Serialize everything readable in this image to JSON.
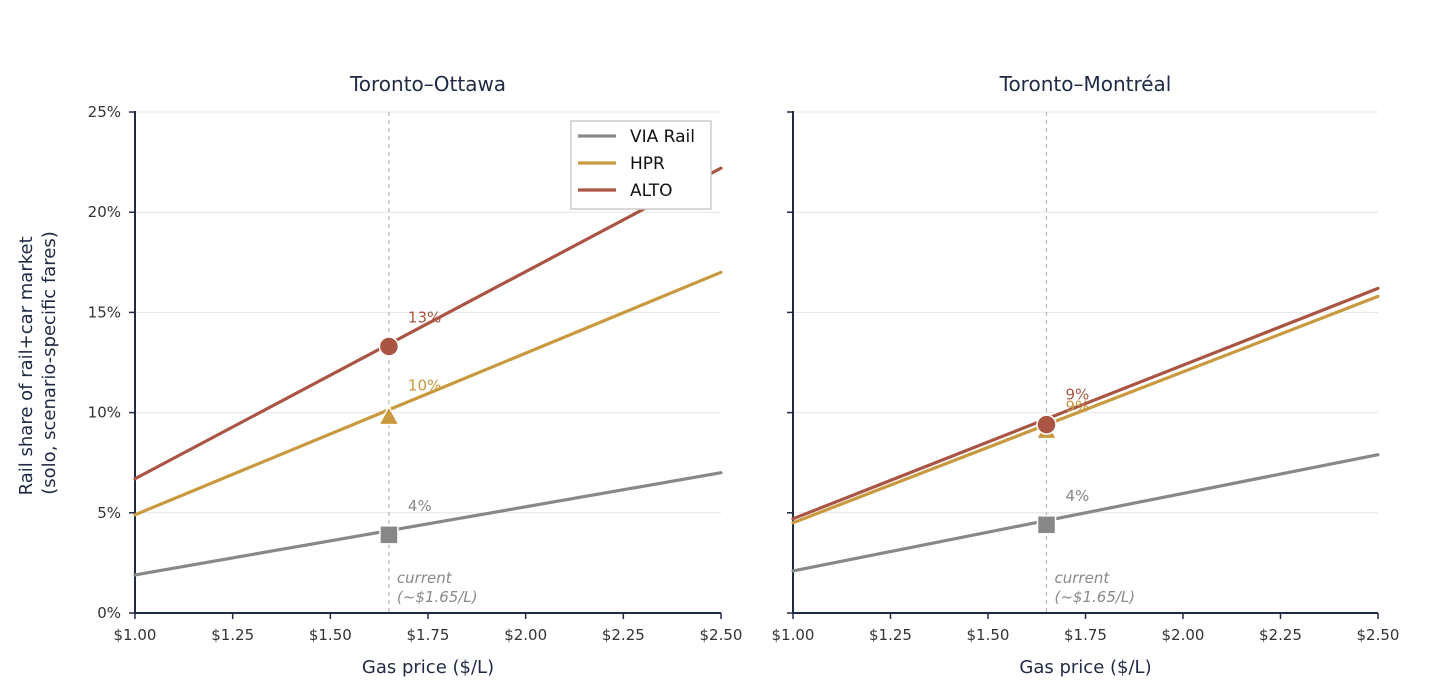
{
  "ylabel_lines": [
    "Rail share of rail+car market",
    "(solo, scenario-specific fares)"
  ],
  "colors": {
    "VIA Rail": "#888888",
    "HPR": "#c9993f",
    "ALTO": "#aa5544"
  },
  "legend": [
    "VIA Rail",
    "HPR",
    "ALTO"
  ],
  "chart_data": [
    {
      "type": "line",
      "title": "Toronto–Ottawa",
      "xlabel": "Gas price ($/L)",
      "ylabel": "Rail share of rail+car market (solo, scenario-specific fares)",
      "xlim": [
        1.0,
        2.5
      ],
      "ylim": [
        0,
        0.25
      ],
      "xticks": [
        1.0,
        1.25,
        1.5,
        1.75,
        2.0,
        2.25,
        2.5
      ],
      "xtick_labels": [
        "$1.00",
        "$1.25",
        "$1.50",
        "$1.75",
        "$2.00",
        "$2.25",
        "$2.50"
      ],
      "yticks": [
        0,
        0.05,
        0.1,
        0.15,
        0.2,
        0.25
      ],
      "ytick_labels": [
        "0%",
        "5%",
        "10%",
        "15%",
        "20%",
        "25%"
      ],
      "grid": "horizontal",
      "legend_position": "top-right",
      "series": [
        {
          "name": "VIA Rail",
          "x": [
            1.0,
            2.5
          ],
          "y": [
            0.019,
            0.07
          ]
        },
        {
          "name": "HPR",
          "x": [
            1.0,
            2.5
          ],
          "y": [
            0.049,
            0.17
          ]
        },
        {
          "name": "ALTO",
          "x": [
            1.0,
            2.5
          ],
          "y": [
            0.067,
            0.222
          ]
        }
      ],
      "reference_line": {
        "x": 1.65,
        "label_lines": [
          "current",
          "(~$1.65/L)"
        ]
      },
      "markers": [
        {
          "series": "VIA Rail",
          "x": 1.65,
          "y": 0.039,
          "shape": "square",
          "label": "4%"
        },
        {
          "series": "HPR",
          "x": 1.65,
          "y": 0.098,
          "shape": "triangle",
          "label": "10%"
        },
        {
          "series": "ALTO",
          "x": 1.65,
          "y": 0.133,
          "shape": "circle",
          "label": "13%"
        }
      ]
    },
    {
      "type": "line",
      "title": "Toronto–Montréal",
      "xlabel": "Gas price ($/L)",
      "xlim": [
        1.0,
        2.5
      ],
      "ylim": [
        0,
        0.25
      ],
      "xticks": [
        1.0,
        1.25,
        1.5,
        1.75,
        2.0,
        2.25,
        2.5
      ],
      "xtick_labels": [
        "$1.00",
        "$1.25",
        "$1.50",
        "$1.75",
        "$2.00",
        "$2.25",
        "$2.50"
      ],
      "yticks": [
        0,
        0.05,
        0.1,
        0.15,
        0.2,
        0.25
      ],
      "grid": "horizontal",
      "series": [
        {
          "name": "VIA Rail",
          "x": [
            1.0,
            2.5
          ],
          "y": [
            0.021,
            0.079
          ]
        },
        {
          "name": "HPR",
          "x": [
            1.0,
            2.5
          ],
          "y": [
            0.045,
            0.158
          ]
        },
        {
          "name": "ALTO",
          "x": [
            1.0,
            2.5
          ],
          "y": [
            0.047,
            0.162
          ]
        }
      ],
      "reference_line": {
        "x": 1.65,
        "label_lines": [
          "current",
          "(~$1.65/L)"
        ]
      },
      "markers": [
        {
          "series": "VIA Rail",
          "x": 1.65,
          "y": 0.044,
          "shape": "square",
          "label": "4%"
        },
        {
          "series": "HPR",
          "x": 1.65,
          "y": 0.091,
          "shape": "triangle",
          "label": "9%"
        },
        {
          "series": "ALTO",
          "x": 1.65,
          "y": 0.094,
          "shape": "circle",
          "label": "9%"
        }
      ]
    }
  ]
}
